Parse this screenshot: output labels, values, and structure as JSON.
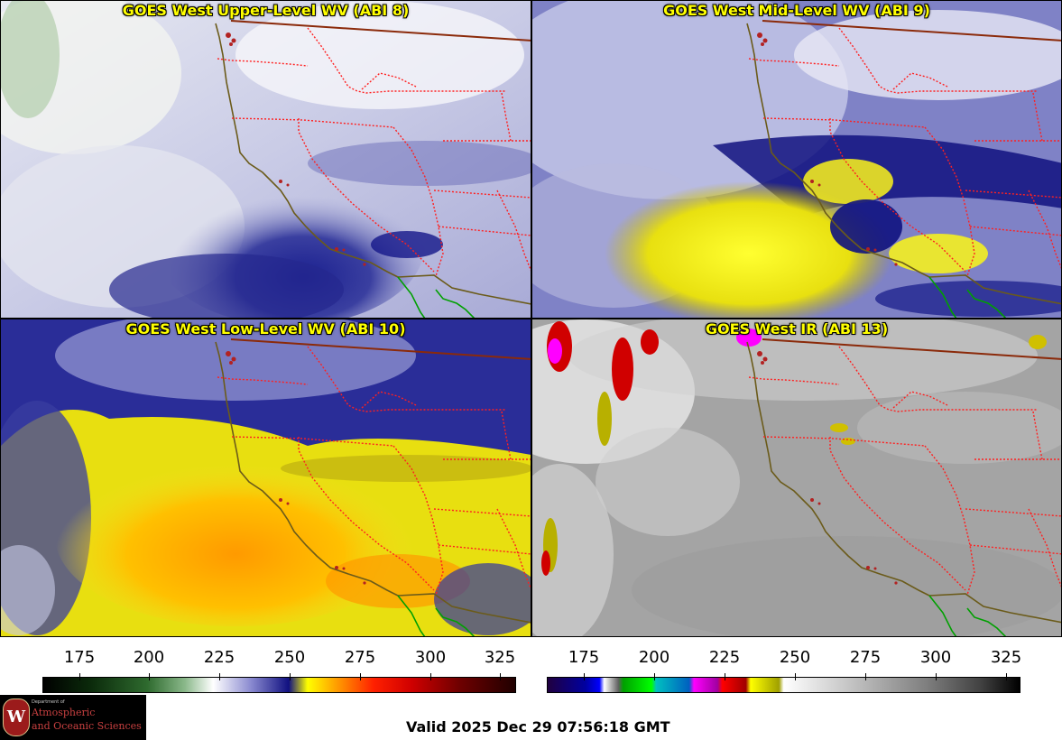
{
  "panels": [
    {
      "title": "GOES West Upper-Level WV (ABI 8)"
    },
    {
      "title": "GOES West Mid-Level WV (ABI 9)"
    },
    {
      "title": "GOES West Low-Level WV (ABI 10)"
    },
    {
      "title": "GOES West IR (ABI 13)"
    }
  ],
  "colorbars": [
    {
      "ticks": [
        "175",
        "200",
        "225",
        "250",
        "275",
        "300",
        "325"
      ]
    },
    {
      "ticks": [
        "175",
        "200",
        "225",
        "250",
        "275",
        "300",
        "325"
      ]
    }
  ],
  "logo": {
    "line1": "Department of",
    "line2": "Atmospheric",
    "line3": "and Oceanic Sciences",
    "seal": "W"
  },
  "valid_time": "Valid 2025 Dec 29 07:56:18 GMT",
  "colors": {
    "state_borders": "#ff2020",
    "country_border": "#8b2a0a",
    "coastline": "#6b5b1a",
    "mexico_coast": "#00a000",
    "title_text": "#ffff00"
  }
}
